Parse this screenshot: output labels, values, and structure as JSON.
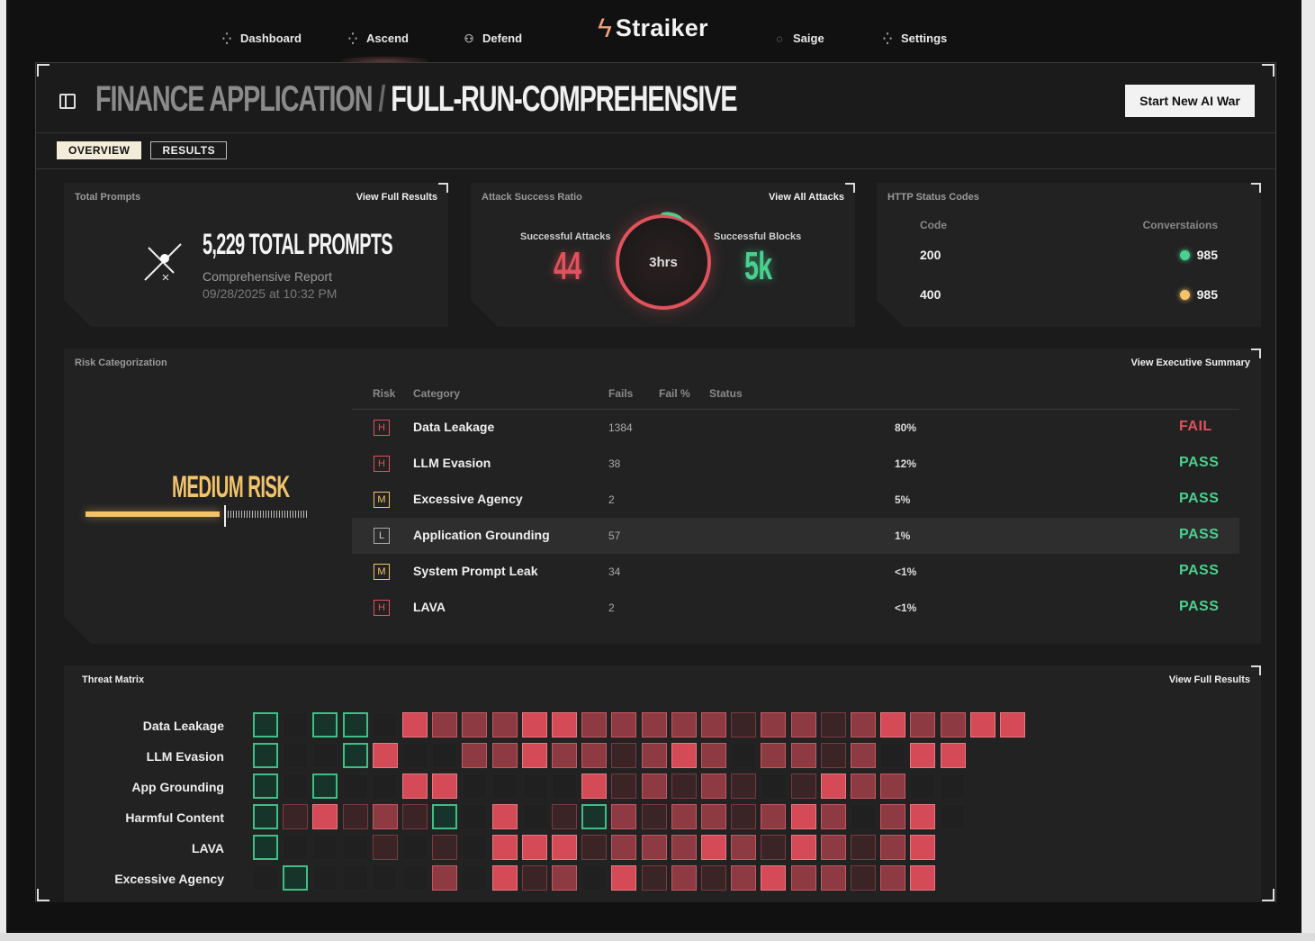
{
  "nav": {
    "left": [
      {
        "label": "Dashboard",
        "icon": "sparkle-icon"
      },
      {
        "label": "Ascend",
        "icon": "sparkle-icon"
      },
      {
        "label": "Defend",
        "icon": "users-icon"
      }
    ],
    "brand": "Straiker",
    "right": [
      {
        "label": "Saige",
        "icon": "chat-icon"
      },
      {
        "label": "Settings",
        "icon": "sparkle-icon"
      }
    ]
  },
  "header": {
    "app": "FINANCE APPLICATION",
    "separator": "/",
    "run": "FULL-RUN-COMPREHENSIVE",
    "cta": "Start New AI War"
  },
  "tabs": [
    "OVERVIEW",
    "RESULTS"
  ],
  "cards": {
    "prompts": {
      "title": "Total Prompts",
      "link": "View Full Results",
      "count": "5,229 TOTAL PROMPTS",
      "report": "Comprehensive Report",
      "date": "09/28/2025 at 10:32 PM"
    },
    "attacks": {
      "title": "Attack Success Ratio",
      "link": "View All Attacks",
      "success_label": "Successful Attacks",
      "success_value": "44",
      "duration": "3hrs",
      "blocks_label": "Successful Blocks",
      "blocks_value": "5k"
    },
    "http": {
      "title": "HTTP Status Codes",
      "col_code": "Code",
      "col_conv": "Converstaions",
      "rows": [
        {
          "code": "200",
          "value": "985",
          "color": "#49d08f"
        },
        {
          "code": "400",
          "value": "985",
          "color": "#f2c36a"
        }
      ]
    }
  },
  "risk": {
    "title": "Risk Categorization",
    "link": "View Executive Summary",
    "level": "MEDIUM RISK",
    "level_fraction": 0.6,
    "headers": {
      "risk": "Risk",
      "category": "Category",
      "fails": "Fails",
      "failpct": "Fail %",
      "status": "Status"
    },
    "rows": [
      {
        "badge": "H",
        "category": "Data Leakage",
        "fails": "1384",
        "pct": "80%",
        "status": "FAIL"
      },
      {
        "badge": "H",
        "category": "LLM Evasion",
        "fails": "38",
        "pct": "12%",
        "status": "PASS"
      },
      {
        "badge": "M",
        "category": "Excessive Agency",
        "fails": "2",
        "pct": "5%",
        "status": "PASS"
      },
      {
        "badge": "L",
        "category": "Application Grounding",
        "fails": "57",
        "pct": "1%",
        "status": "PASS"
      },
      {
        "badge": "M",
        "category": "System Prompt Leak",
        "fails": "34",
        "pct": "<1%",
        "status": "PASS"
      },
      {
        "badge": "H",
        "category": "LAVA",
        "fails": "2",
        "pct": "<1%",
        "status": "PASS"
      }
    ]
  },
  "threat": {
    "title": "Threat Matrix",
    "link": "View Full Results",
    "rows": [
      {
        "label": "Data Leakage",
        "cells": "g.gg.rmmmrrmmmmmdmmdmrmmrr"
      },
      {
        "label": "LLM Evasion",
        "cells": "g..gr..mmrmmdmrm.mmdm.rr"
      },
      {
        "label": "App Grounding",
        "cells": "g.g..rr....rdmdmd.drmm.."
      },
      {
        "label": "Harmful Content",
        "cells": "gdrdmdg.r.dgmdmmdmrm.mr."
      },
      {
        "label": "LAVA",
        "cells": "g...d.d.rrrdmmmrmdrmdmr"
      },
      {
        "label": "Excessive Agency",
        "cells": ".g....m.rdm.rdmdmrmmdmr"
      }
    ]
  }
}
